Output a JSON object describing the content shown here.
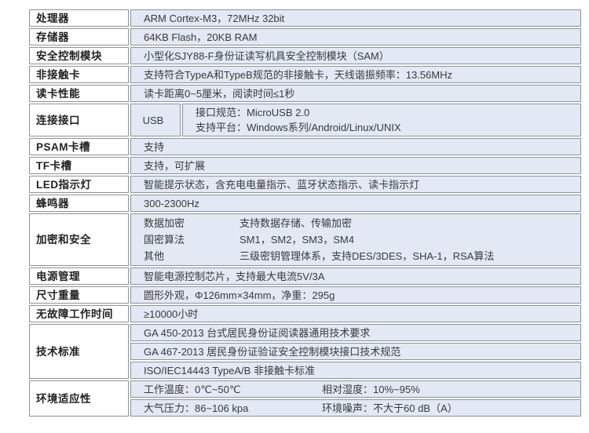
{
  "colors": {
    "cell_fill": "#e2e8f4",
    "label_fill": "#ffffff",
    "border": "#8d939c",
    "text": "#3a3a3a"
  },
  "table": {
    "rows": [
      {
        "label": "处理器",
        "value": "ARM Cortex-M3，72MHz 32bit"
      },
      {
        "label": "存储器",
        "value": "64KB Flash，20KB RAM"
      },
      {
        "label": "安全控制模块",
        "value": "小型化SJY88-F身份证读写机具安全控制模块（SAM）"
      },
      {
        "label": "非接触卡",
        "value": "支持符合TypeA和TypeB规范的非接触卡，天线谐振频率：13.56MHz"
      },
      {
        "label": "读卡性能",
        "value": "读卡距离0~5厘米，阅读时间≤1秒"
      },
      {
        "label": "连接接口",
        "port": "USB",
        "lines": [
          "接口规范：MicroUSB 2.0",
          "支持平台：Windows系列/Android/Linux/UNIX"
        ]
      },
      {
        "label": "PSAM卡槽",
        "value": "支持"
      },
      {
        "label": "TF卡槽",
        "value": "支持，可扩展"
      },
      {
        "label": "LED指示灯",
        "value": "智能提示状态，含充电电量指示、蓝牙状态指示、读卡指示灯"
      },
      {
        "label": "蜂鸣器",
        "value": "300-2300Hz"
      },
      {
        "label": "加密和安全",
        "items": [
          {
            "name": "数据加密",
            "value": "支持数据存储、传输加密"
          },
          {
            "name": "国密算法",
            "value": "SM1，SM2，SM3，SM4"
          },
          {
            "name": "其他",
            "value": "三级密钥管理体系，支持DES/3DES，SHA-1，RSA算法"
          }
        ]
      },
      {
        "label": "电源管理",
        "value": "智能电源控制芯片，支持最大电流5V/3A"
      },
      {
        "label": "尺寸重量",
        "value": "圆形外观，Φ126mm×34mm，净重：295g"
      },
      {
        "label": "无故障工作时间",
        "value": "≥10000小时"
      },
      {
        "label": "技术标准",
        "standards": [
          "GA 450-2013 台式居民身份证阅读器通用技术要求",
          "GA 467-2013 居民身份证验证安全控制模块接口技术规范",
          "ISO/IEC14443 TypeA/B 非接触卡标准"
        ]
      },
      {
        "label": "环境适应性",
        "lines": [
          {
            "left": "工作温度：0℃~50℃",
            "right": "相对湿度：10%~95%"
          },
          {
            "left": "大气压力：86~106 kpa",
            "right": "环境噪声：不大于60 dB（A）"
          }
        ]
      }
    ]
  }
}
